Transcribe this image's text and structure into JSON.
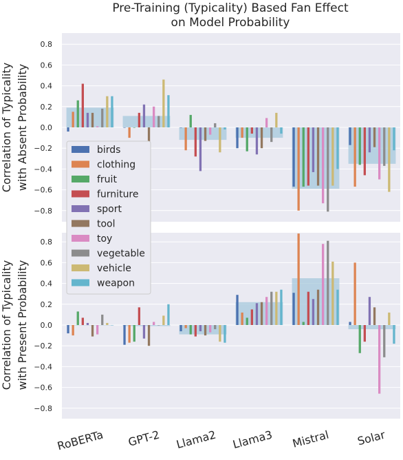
{
  "figure": {
    "title_line1": "Pre-Training (Typicality) Based Fan Effect",
    "title_line2": "on Model Probability"
  },
  "colors": {
    "birds": "#4c72b0",
    "clothing": "#dd8452",
    "fruit": "#55a868",
    "furniture": "#c44e52",
    "sport": "#8172b3",
    "tool": "#937860",
    "toy": "#da8bc3",
    "vegetable": "#8c8c8c",
    "vehicle": "#ccb974",
    "weapon": "#64b5cd",
    "mean_bar": "#a6c8dc",
    "panel_bg": "#eaeaf2",
    "grid": "#ffffff"
  },
  "chart_data": [
    {
      "type": "bar",
      "title": "Pre-Training (Typicality) Based Fan Effect on Model Probability",
      "ylabel_line1": "Correlation of Typicality",
      "ylabel_line2": "with Absent Probability",
      "ylim": [
        -0.9,
        0.9
      ],
      "yticks": [
        "0.8",
        "0.6",
        "0.4",
        "0.2",
        "0.0",
        "−0.2",
        "−0.4",
        "−0.6",
        "−0.8"
      ],
      "ytick_values": [
        0.8,
        0.6,
        0.4,
        0.2,
        0.0,
        -0.2,
        -0.4,
        -0.6,
        -0.8
      ],
      "grid": true,
      "legend_position": "lower-left",
      "categories": [
        "RoBERTa",
        "GPT-2",
        "Llama2",
        "Llama3",
        "Mistral",
        "Solar"
      ],
      "mean": [
        0.19,
        0.11,
        -0.12,
        -0.1,
        -0.59,
        -0.35
      ],
      "series": [
        {
          "name": "birds",
          "values": [
            -0.04,
            0.0,
            0.0,
            -0.2,
            -0.57,
            -0.17
          ]
        },
        {
          "name": "clothing",
          "values": [
            0.15,
            -0.1,
            -0.22,
            -0.1,
            -0.8,
            -0.57
          ]
        },
        {
          "name": "fruit",
          "values": [
            0.26,
            0.0,
            0.12,
            -0.23,
            -0.57,
            -0.36
          ]
        },
        {
          "name": "furniture",
          "values": [
            0.42,
            0.14,
            -0.28,
            -0.06,
            -0.56,
            -0.46
          ]
        },
        {
          "name": "sport",
          "values": [
            0.14,
            0.22,
            -0.42,
            -0.26,
            -0.43,
            -0.24
          ]
        },
        {
          "name": "tool",
          "values": [
            0.14,
            -0.15,
            -0.13,
            -0.2,
            -0.56,
            -0.19
          ]
        },
        {
          "name": "toy",
          "values": [
            0.01,
            0.2,
            -0.07,
            0.09,
            -0.73,
            -0.5
          ]
        },
        {
          "name": "vegetable",
          "values": [
            0.18,
            0.11,
            0.04,
            -0.14,
            -0.81,
            -0.37
          ]
        },
        {
          "name": "vehicle",
          "values": [
            0.3,
            0.46,
            -0.24,
            0.14,
            -0.56,
            -0.62
          ]
        },
        {
          "name": "weapon",
          "values": [
            0.3,
            0.31,
            -0.02,
            -0.06,
            -0.4,
            -0.22
          ]
        }
      ]
    },
    {
      "type": "bar",
      "ylabel_line1": "Correlation of Typicality",
      "ylabel_line2": "with Present Probability",
      "ylim": [
        -0.9,
        0.9
      ],
      "yticks": [
        "0.8",
        "0.6",
        "0.4",
        "0.2",
        "0.0",
        "−0.2",
        "−0.4",
        "−0.6",
        "−0.8"
      ],
      "ytick_values": [
        0.8,
        0.6,
        0.4,
        0.2,
        0.0,
        -0.2,
        -0.4,
        -0.6,
        -0.8
      ],
      "grid": true,
      "categories": [
        "RoBERTa",
        "GPT-2",
        "Llama2",
        "Llama3",
        "Mistral",
        "Solar"
      ],
      "mean": [
        0.0,
        -0.01,
        -0.09,
        0.22,
        0.45,
        -0.04
      ],
      "series": [
        {
          "name": "birds",
          "values": [
            -0.08,
            -0.19,
            -0.06,
            0.29,
            0.31,
            0.03
          ]
        },
        {
          "name": "clothing",
          "values": [
            -0.1,
            -0.17,
            -0.03,
            0.12,
            0.88,
            0.6
          ]
        },
        {
          "name": "fruit",
          "values": [
            0.13,
            -0.16,
            -0.09,
            0.07,
            0.03,
            -0.27
          ]
        },
        {
          "name": "furniture",
          "values": [
            0.07,
            0.17,
            -0.11,
            0.15,
            0.32,
            -0.16
          ]
        },
        {
          "name": "sport",
          "values": [
            0.02,
            -0.13,
            -0.06,
            0.21,
            0.25,
            0.27
          ]
        },
        {
          "name": "tool",
          "values": [
            -0.11,
            -0.2,
            -0.1,
            0.22,
            0.34,
            0.17
          ]
        },
        {
          "name": "toy",
          "values": [
            -0.09,
            0.03,
            -0.07,
            0.27,
            0.78,
            -0.66
          ]
        },
        {
          "name": "vegetable",
          "values": [
            0.1,
            0.0,
            -0.04,
            0.32,
            0.81,
            -0.31
          ]
        },
        {
          "name": "vehicle",
          "values": [
            0.02,
            0.09,
            -0.16,
            0.32,
            0.61,
            0.12
          ]
        },
        {
          "name": "weapon",
          "values": [
            0.0,
            0.2,
            -0.17,
            0.34,
            0.34,
            -0.18
          ]
        }
      ]
    }
  ]
}
